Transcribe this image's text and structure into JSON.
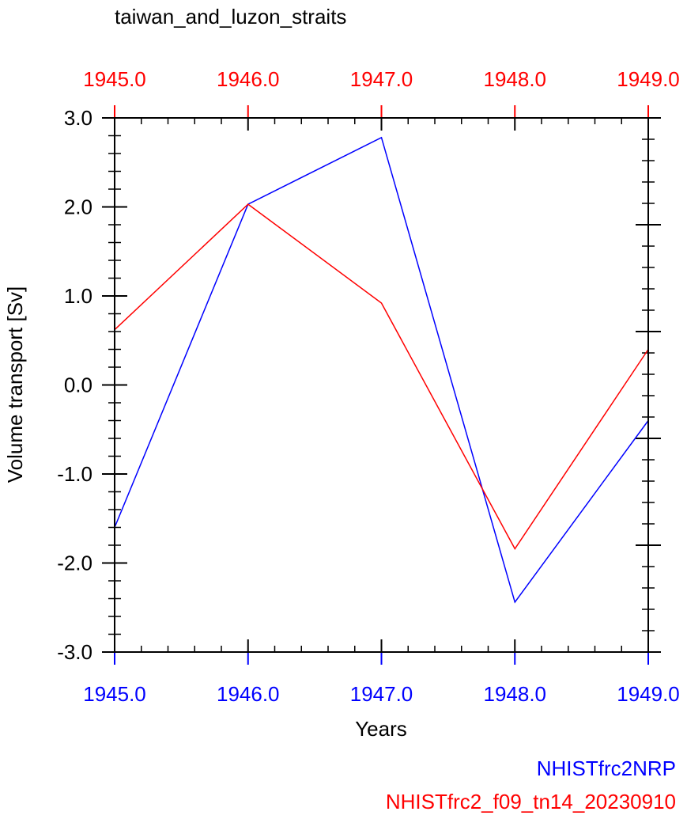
{
  "chart_data": {
    "type": "line",
    "title": "taiwan_and_luzon_straits",
    "xlabel": "Years",
    "ylabel": "Volume transport [Sv]",
    "xlim": [
      1945,
      1949
    ],
    "ylim": [
      -3,
      3
    ],
    "x": [
      1945,
      1946,
      1947,
      1948,
      1949
    ],
    "x_tick_labels": [
      "1945.0",
      "1946.0",
      "1947.0",
      "1948.0",
      "1949.0"
    ],
    "y_ticks": [
      3,
      2,
      1,
      0,
      -1,
      -2,
      -3
    ],
    "y_tick_labels": [
      "3.0",
      "2.0",
      "1.0",
      "0.0",
      "-1.0",
      "-2.0",
      "-3.0"
    ],
    "series": [
      {
        "name": "NHISTfrc2NRP",
        "color": "#0000ff",
        "values": [
          -1.6,
          2.03,
          2.78,
          -2.44,
          -0.4
        ]
      },
      {
        "name": "NHISTfrc2_f09_tn14_20230910",
        "color": "#ff0000",
        "values": [
          0.62,
          2.03,
          0.92,
          -1.84,
          0.4
        ]
      }
    ],
    "bottom_axis_color": "#0000ff",
    "top_axis_color": "#ff0000"
  }
}
